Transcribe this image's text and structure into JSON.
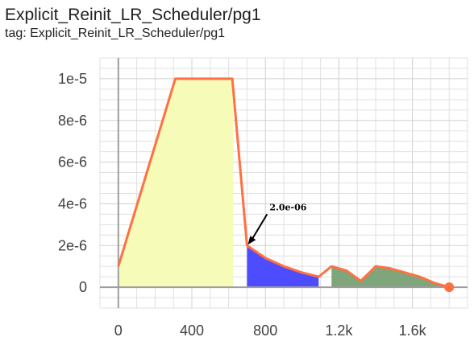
{
  "header": {
    "title": "Explicit_Reinit_LR_Scheduler/pg1",
    "tag": "tag: Explicit_Reinit_LR_Scheduler/pg1"
  },
  "chart_data": {
    "type": "line",
    "xlim": [
      -100,
      1900
    ],
    "ylim": [
      -1e-06,
      1.1e-05
    ],
    "grid": true,
    "x_ticks": [
      0,
      400,
      800,
      1200,
      1600
    ],
    "x_tick_labels": [
      "0",
      "400",
      "800",
      "1.2k",
      "1.6k"
    ],
    "y_ticks": [
      0,
      2e-06,
      4e-06,
      6e-06,
      8e-06,
      1e-05
    ],
    "y_tick_labels": [
      "0",
      "2e-6",
      "4e-6",
      "6e-6",
      "8e-6",
      "1e-5"
    ],
    "line_color": "#ff7043",
    "series": [
      {
        "x": [
          0,
          310,
          620,
          700,
          800,
          900,
          1000,
          1090,
          1160,
          1240,
          1320,
          1400,
          1480,
          1560,
          1640,
          1720,
          1800
        ],
        "y": [
          1e-06,
          1e-05,
          1e-05,
          2e-06,
          1.4e-06,
          1e-06,
          7e-07,
          5e-07,
          1e-06,
          8e-07,
          3e-07,
          1e-06,
          9e-07,
          7e-07,
          5e-07,
          2e-07,
          0
        ]
      }
    ],
    "regions": [
      {
        "x_start": 0,
        "x_end": 625,
        "color": "#f6fbb8"
      },
      {
        "x_start": 700,
        "x_end": 1090,
        "color": "#4d4dff"
      },
      {
        "x_start": 1160,
        "x_end": 1800,
        "color": "#7fa57a"
      }
    ],
    "end_marker": {
      "x": 1800,
      "y": 0,
      "color": "#ff7043"
    },
    "annotation": {
      "text": "2.0e-06",
      "x": 700,
      "y": 2e-06
    }
  }
}
